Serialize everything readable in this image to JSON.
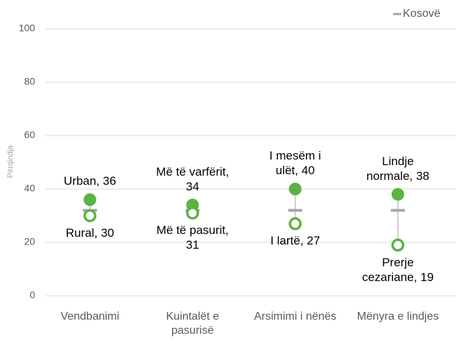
{
  "chart_data": {
    "type": "dotplot",
    "y_label": "Përqindja",
    "categories": [
      "Vendbanimi",
      "Kuintalët e pasurisë",
      "Arsimimi i nënës",
      "Mënyra e lindjes"
    ],
    "series": [
      {
        "values": [
          36,
          34,
          40,
          38
        ],
        "value_labels": [
          "Urban, 36",
          "Më të varfërit, 34",
          "I mesëm i ulët, 40",
          "Lindje normale, 38"
        ],
        "color": "#5ab342",
        "hollow": false
      },
      {
        "values": [
          30,
          31,
          27,
          19
        ],
        "value_labels": [
          "Rural, 30",
          "Më të pasurit, 31",
          "I lartë, 27",
          "Prerje cezariane, 19"
        ],
        "color": "#5ab342",
        "hollow": true
      },
      {
        "name": "Kosovë",
        "values": [
          32,
          32,
          32,
          32
        ],
        "color": "#a6a6a6"
      }
    ],
    "ylim": [
      0,
      100
    ],
    "yticks": [
      0,
      20,
      40,
      60,
      80,
      100
    ],
    "grid": true,
    "legend": "upper right"
  }
}
